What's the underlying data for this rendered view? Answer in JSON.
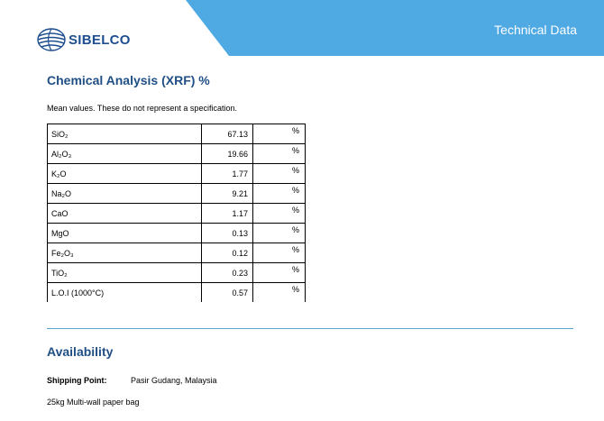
{
  "header": {
    "brand": "SIBELCO",
    "title": "Technical Data",
    "accent_color": "#4fa9e3",
    "brand_color": "#1e4e8f",
    "logo_icon": "globe-icon"
  },
  "chemical": {
    "heading": "Chemical Analysis (XRF) %",
    "intro": "Mean values. These do not represent a specification.",
    "rows": [
      {
        "name": "SiO₂",
        "value": "67.13",
        "unit": "%"
      },
      {
        "name": "Al₂O₃",
        "value": "19.66",
        "unit": "%"
      },
      {
        "name": "K₂O",
        "value": "1.77",
        "unit": "%"
      },
      {
        "name": "Na₂O",
        "value": "9.21",
        "unit": "%"
      },
      {
        "name": "CaO",
        "value": "1.17",
        "unit": "%"
      },
      {
        "name": "MgO",
        "value": "0.13",
        "unit": "%"
      },
      {
        "name": "Fe₂O₃",
        "value": "0.12",
        "unit": "%"
      },
      {
        "name": "TiO₂",
        "value": "0.23",
        "unit": "%"
      },
      {
        "name": "L.O.I (1000°C)",
        "value": "0.57",
        "unit": "%"
      }
    ]
  },
  "availability": {
    "heading": "Availability",
    "shipping_label": "Shipping Point:",
    "shipping_value": "Pasir Gudang, Malaysia",
    "packaging": "25kg Multi-wall paper bag"
  }
}
